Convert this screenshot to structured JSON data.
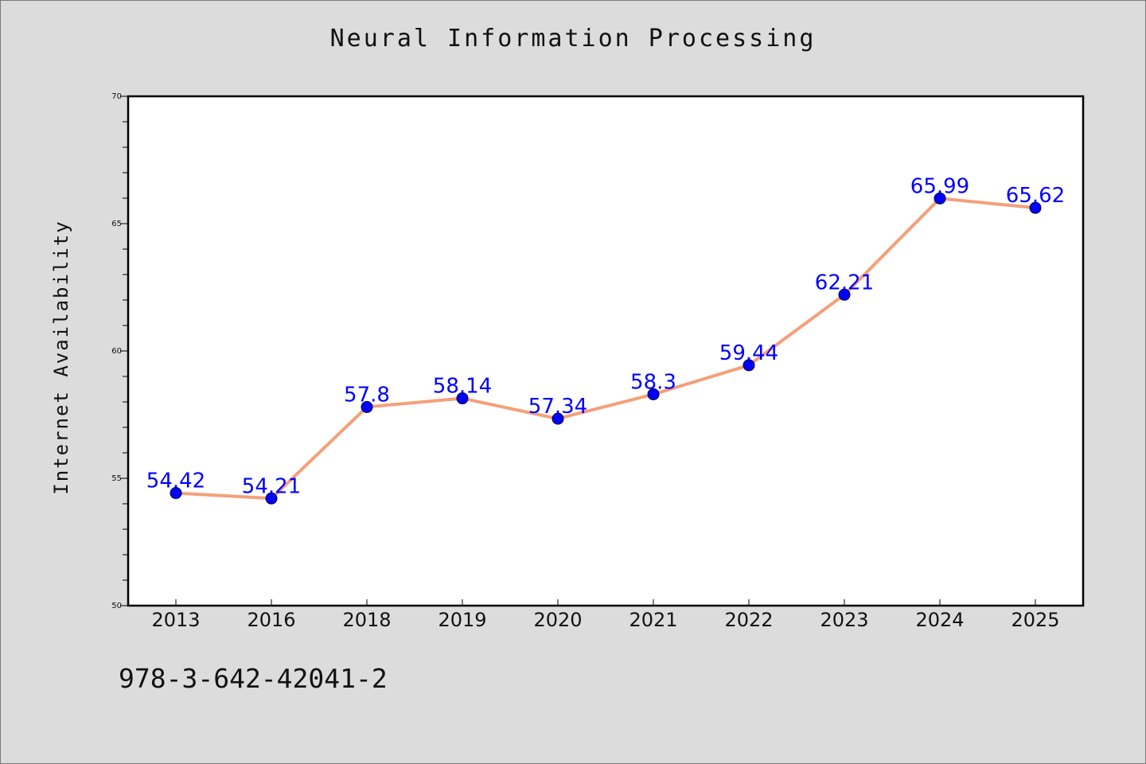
{
  "chart_data": {
    "type": "line",
    "title": "Neural Information Processing",
    "xlabel": "",
    "ylabel": "Internet Availability",
    "categories": [
      "2013",
      "2016",
      "2018",
      "2019",
      "2020",
      "2021",
      "2022",
      "2023",
      "2024",
      "2025"
    ],
    "series": [
      {
        "values": [
          54.42,
          54.21,
          57.8,
          58.14,
          57.34,
          58.3,
          59.44,
          62.21,
          65.99,
          65.62
        ],
        "data_labels": [
          "54.42",
          "54.21",
          "57.8",
          "58.14",
          "57.34",
          "58.3",
          "59.44",
          "62.21",
          "65.99",
          "65.62"
        ]
      }
    ],
    "ylim": [
      50,
      70
    ],
    "yticks": [
      "50",
      "55",
      "60",
      "65",
      "70"
    ],
    "grid": false,
    "legend": "none"
  },
  "footer": {
    "text": "978-3-642-42041-2"
  },
  "colors": {
    "background": "#dcdcdc",
    "plot_background": "#ffffff",
    "line": "#f4a07a",
    "marker": "#0000ff",
    "data_label": "#0000ff"
  }
}
